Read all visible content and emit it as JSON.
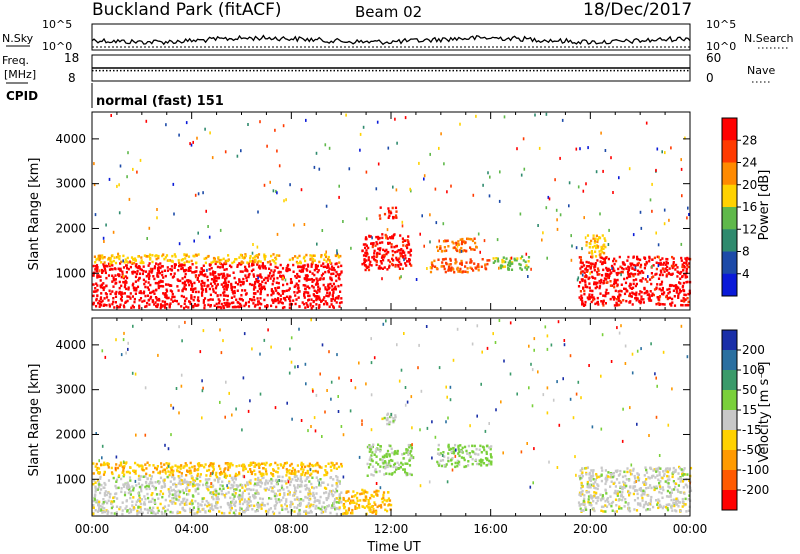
{
  "header": {
    "title": "Buckland Park (fitACF)",
    "beam": "Beam 02",
    "date": "18/Dec/2017"
  },
  "noise_panel": {
    "left_label": "N.Sky",
    "right_label": "N.Search",
    "tick_top_left": "10^5",
    "tick_bottom_left": "10^0",
    "tick_top_right": "10^5",
    "tick_bottom_right": "10^0"
  },
  "freq_panel": {
    "left_label_1": "Freq.",
    "left_label_2": "[MHz]",
    "right_label": "Nave",
    "tick_top_left": "18",
    "tick_bottom_left": "8",
    "tick_top_right": "60",
    "tick_bottom_right": "0",
    "freq_value_mhz": 13,
    "nave_value": 20
  },
  "cpid_panel": {
    "label": "CPID",
    "mode_text": "normal (fast) 151"
  },
  "power_colorbar": {
    "label": "Power [dB]",
    "ticks": [
      "28",
      "24",
      "20",
      "16",
      "12",
      "8",
      "4"
    ],
    "colors": [
      "#ff0000",
      "#ff3a00",
      "#ff8a00",
      "#ffd200",
      "#5fb84a",
      "#2f8a6e",
      "#1c4aa8",
      "#0a1ad8"
    ]
  },
  "velocity_colorbar": {
    "label": "Velocity [m s⁻¹]",
    "ticks": [
      "200",
      "100",
      "50",
      "15",
      "-15",
      "-50",
      "-100",
      "-200"
    ],
    "colors": [
      "#1a2fa8",
      "#2a6fa0",
      "#3a9a6a",
      "#7ad03a",
      "#c8c8c8",
      "#ffd200",
      "#ff9a00",
      "#ff5a00",
      "#ff0000"
    ]
  },
  "chart_data": [
    {
      "type": "heatmap",
      "panel": "power",
      "ylabel": "Slant Range [km]",
      "yticks": [
        1000,
        2000,
        3000,
        4000
      ],
      "ylim": [
        180,
        4600
      ],
      "xlim_hours": [
        0,
        24
      ],
      "unit": "dB",
      "clim": [
        0,
        30
      ],
      "regions": [
        {
          "t0": 0.0,
          "t1": 10.0,
          "r0": 250,
          "r1": 1250,
          "value": 29
        },
        {
          "t0": 0.0,
          "t1": 10.0,
          "r0": 1250,
          "r1": 1450,
          "value": 18
        },
        {
          "t0": 10.8,
          "t1": 12.8,
          "r0": 1100,
          "r1": 1900,
          "value": 28
        },
        {
          "t0": 11.5,
          "t1": 12.2,
          "r0": 2250,
          "r1": 2500,
          "value": 26
        },
        {
          "t0": 13.5,
          "t1": 16.0,
          "r0": 1050,
          "r1": 1350,
          "value": 24
        },
        {
          "t0": 13.8,
          "t1": 15.5,
          "r0": 1500,
          "r1": 1800,
          "value": 22
        },
        {
          "t0": 16.0,
          "t1": 17.5,
          "r0": 1100,
          "r1": 1400,
          "value": 14
        },
        {
          "t0": 19.5,
          "t1": 24.0,
          "r0": 300,
          "r1": 1400,
          "value": 28
        },
        {
          "t0": 19.8,
          "t1": 20.6,
          "r0": 1400,
          "r1": 1900,
          "value": 18
        }
      ]
    },
    {
      "type": "heatmap",
      "panel": "velocity",
      "xlabel": "Time UT",
      "ylabel": "Slant Range [km]",
      "yticks": [
        1000,
        2000,
        3000,
        4000
      ],
      "ylim": [
        180,
        4600
      ],
      "xlim_hours": [
        0,
        24
      ],
      "xticks": [
        "00:00",
        "04:00",
        "08:00",
        "12:00",
        "16:00",
        "20:00",
        "00:00"
      ],
      "unit": "m s-1",
      "clim": [
        -200,
        200
      ],
      "regions": [
        {
          "t0": 0.0,
          "t1": 10.0,
          "r0": 250,
          "r1": 1100,
          "value": 0
        },
        {
          "t0": 0.0,
          "t1": 10.0,
          "r0": 1100,
          "r1": 1400,
          "value": -60
        },
        {
          "t0": 11.0,
          "t1": 12.8,
          "r0": 1100,
          "r1": 1800,
          "value": 30
        },
        {
          "t0": 13.8,
          "t1": 16.0,
          "r0": 1300,
          "r1": 1800,
          "value": 35
        },
        {
          "t0": 11.5,
          "t1": 12.2,
          "r0": 2250,
          "r1": 2500,
          "value": 0
        },
        {
          "t0": 19.5,
          "t1": 24.0,
          "r0": 300,
          "r1": 1300,
          "value": 0
        },
        {
          "t0": 10.0,
          "t1": 12.0,
          "r0": 250,
          "r1": 800,
          "value": -60
        }
      ]
    }
  ]
}
